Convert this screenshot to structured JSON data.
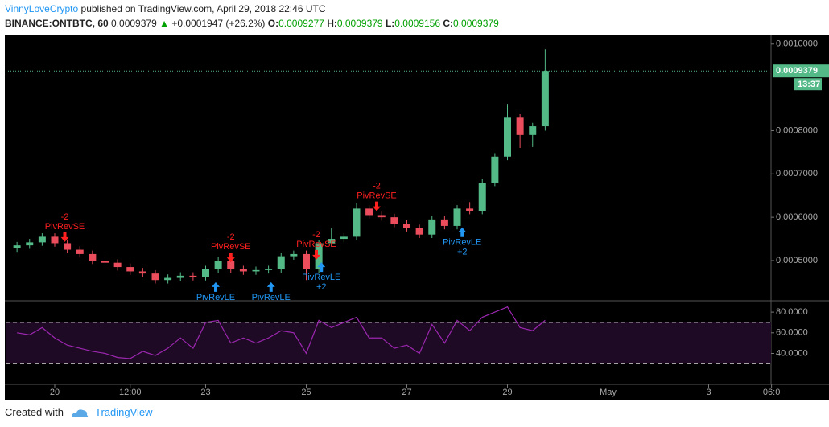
{
  "header": {
    "author": "VinnyLoveCrypto",
    "published": "published on TradingView.com, April 29, 2018 22:46 UTC",
    "symbol": "BINANCE:ONTBTC, 60",
    "price": "0.0009379",
    "change": "+0.0001947 (+26.2%)",
    "o_label": "O:",
    "o": "0.0009277",
    "h_label": "H:",
    "h": "0.0009379",
    "l_label": "L:",
    "l": "0.0009156",
    "c_label": "C:",
    "c": "0.0009379"
  },
  "footer": {
    "created": "Created with",
    "brand": "TradingView"
  },
  "chart_data": [
    {
      "type": "candlestick",
      "up_color": "#53b987",
      "down_color": "#eb4d5c",
      "x": [
        19.25,
        19.5,
        19.75,
        20,
        20.25,
        20.5,
        20.75,
        21,
        21.25,
        21.5,
        21.75,
        22,
        22.25,
        22.5,
        22.75,
        23,
        23.25,
        23.5,
        23.75,
        24,
        24.25,
        24.5,
        24.75,
        25,
        25.25,
        25.5,
        25.75,
        26,
        26.25,
        26.5,
        26.75,
        27,
        27.25,
        27.5,
        27.75,
        28,
        28.25,
        28.5,
        28.75,
        29,
        29.25,
        29.5,
        29.75
      ],
      "open": [
        0.000528,
        0.000535,
        0.000542,
        0.000555,
        0.00054,
        0.000525,
        0.000515,
        0.0005,
        0.000495,
        0.000485,
        0.000475,
        0.00047,
        0.000455,
        0.00046,
        0.000465,
        0.000462,
        0.00048,
        0.0005,
        0.00048,
        0.000475,
        0.000478,
        0.00048,
        0.00051,
        0.000515,
        0.00048,
        0.00054,
        0.00055,
        0.000555,
        0.00062,
        0.000605,
        0.0006,
        0.000585,
        0.000575,
        0.00056,
        0.000595,
        0.00058,
        0.00062,
        0.000615,
        0.00068,
        0.00074,
        0.00083,
        0.00079,
        0.00081
      ],
      "high": [
        0.000543,
        0.00055,
        0.000563,
        0.000563,
        0.000548,
        0.000533,
        0.000523,
        0.000508,
        0.000503,
        0.000493,
        0.000483,
        0.000478,
        0.000468,
        0.000473,
        0.000473,
        0.000488,
        0.000508,
        0.000508,
        0.000488,
        0.000486,
        0.000488,
        0.000518,
        0.000523,
        0.000523,
        0.000548,
        0.000575,
        0.000563,
        0.000632,
        0.000628,
        0.000613,
        0.000608,
        0.000593,
        0.000583,
        0.000603,
        0.000603,
        0.000628,
        0.000635,
        0.000688,
        0.000748,
        0.000862,
        0.000838,
        0.000818,
        0.000988
      ],
      "low": [
        0.00052,
        0.000527,
        0.000534,
        0.000532,
        0.000517,
        0.000507,
        0.000492,
        0.000487,
        0.000477,
        0.000467,
        0.000462,
        0.000447,
        0.000447,
        0.000452,
        0.000454,
        0.000454,
        0.000472,
        0.000472,
        0.000467,
        0.000467,
        0.00047,
        0.000472,
        0.000502,
        0.000455,
        0.000472,
        0.000532,
        0.000542,
        0.000547,
        0.000597,
        0.000592,
        0.000577,
        0.000567,
        0.000552,
        0.000552,
        0.000572,
        0.000572,
        0.000607,
        0.000607,
        0.000672,
        0.000732,
        0.00076,
        0.000762,
        0.0008
      ],
      "close": [
        0.000535,
        0.000542,
        0.000555,
        0.00054,
        0.000525,
        0.000515,
        0.0005,
        0.000495,
        0.000485,
        0.000475,
        0.00047,
        0.000455,
        0.00046,
        0.000465,
        0.000462,
        0.00048,
        0.0005,
        0.00048,
        0.000475,
        0.000478,
        0.00048,
        0.00051,
        0.000515,
        0.00048,
        0.00054,
        0.00055,
        0.000555,
        0.00062,
        0.000605,
        0.0006,
        0.000585,
        0.000575,
        0.00056,
        0.000595,
        0.00058,
        0.00062,
        0.000615,
        0.00068,
        0.00074,
        0.00083,
        0.00079,
        0.00081,
        0.0009379
      ],
      "xlim": [
        19.024,
        34.24
      ],
      "ylim": [
        0.000409,
        0.00102
      ],
      "yticks": [
        {
          "value": 0.0005,
          "label": "0.0005000"
        },
        {
          "value": 0.0006,
          "label": "0.0006000"
        },
        {
          "value": 0.0007,
          "label": "0.0007000"
        },
        {
          "value": 0.0008,
          "label": "0.0008000"
        },
        {
          "value": 0.001,
          "label": "0.0010000"
        }
      ],
      "last_price": {
        "value": 0.0009379,
        "label": "0.0009379"
      },
      "countdown": "13:37",
      "signals": [
        {
          "name": "PivRevSE",
          "note": "-2",
          "side": "short",
          "x": 20.2,
          "y": 0.000543
        },
        {
          "name": "PivRevSE",
          "note": "-2",
          "side": "short",
          "x": 23.5,
          "y": 0.000496
        },
        {
          "name": "PivRevSE",
          "note": "-2",
          "side": "short",
          "x": 25.2,
          "y": 0.000502
        },
        {
          "name": "PivRevSE",
          "note": "-2",
          "side": "short",
          "x": 26.4,
          "y": 0.000614
        },
        {
          "name": "PivRevLE",
          "side": "long",
          "x": 23.2,
          "y": 0.00045
        },
        {
          "name": "PivRevLE",
          "side": "long",
          "x": 24.3,
          "y": 0.00045
        },
        {
          "name": "PivRevLE",
          "note": "+2",
          "side": "long",
          "x": 25.3,
          "y": 0.000496
        },
        {
          "name": "PivRevLE",
          "note": "+2",
          "side": "long",
          "x": 28.1,
          "y": 0.0005765
        }
      ]
    },
    {
      "type": "line",
      "color": "#9c27b0",
      "x": [
        19.25,
        19.5,
        19.75,
        20,
        20.25,
        20.5,
        20.75,
        21,
        21.25,
        21.5,
        21.75,
        22,
        22.25,
        22.5,
        22.75,
        23,
        23.25,
        23.5,
        23.75,
        24,
        24.25,
        24.5,
        24.75,
        25,
        25.25,
        25.5,
        25.75,
        26,
        26.25,
        26.5,
        26.75,
        27,
        27.25,
        27.5,
        27.75,
        28,
        28.25,
        28.5,
        28.75,
        29,
        29.25,
        29.5,
        29.75
      ],
      "values": [
        60,
        58,
        65,
        55,
        48,
        45,
        42,
        40,
        36,
        35,
        42,
        38,
        45,
        55,
        45,
        70,
        72,
        50,
        55,
        50,
        55,
        62,
        60,
        40,
        72,
        65,
        70,
        75,
        55,
        55,
        45,
        48,
        40,
        68,
        50,
        72,
        62,
        75,
        80,
        85,
        65,
        62,
        72
      ],
      "xlim": [
        19.024,
        34.24
      ],
      "ylim": [
        10.8,
        90.2
      ],
      "yticks": [
        {
          "value": 40,
          "label": "40.0000"
        },
        {
          "value": 60,
          "label": "60.0000"
        },
        {
          "value": 80,
          "label": "80.0000"
        }
      ],
      "levels": [
        30,
        70
      ],
      "xticks": [
        20,
        {
          "value": 21.5,
          "label": "12:00"
        },
        23,
        25,
        27,
        29,
        {
          "value": 31,
          "label": "May"
        },
        {
          "value": 33,
          "label": "3"
        },
        {
          "value": 34.25,
          "label": "06:0"
        }
      ]
    }
  ]
}
